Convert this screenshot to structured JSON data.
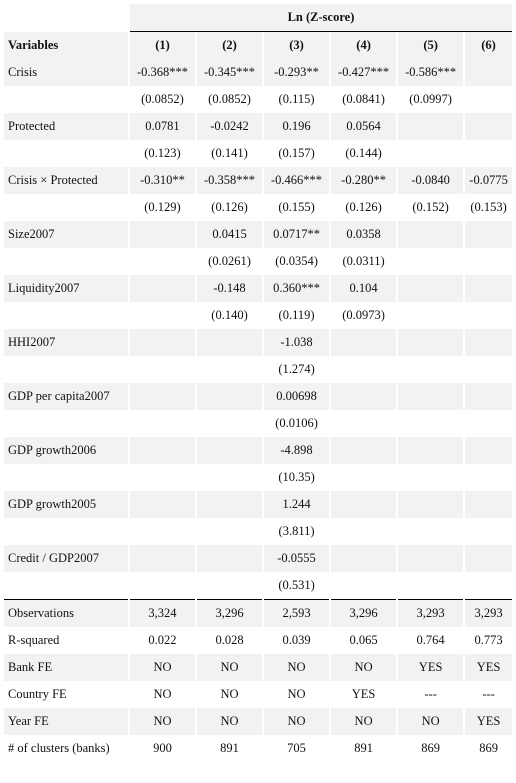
{
  "header": {
    "dep_var": "Ln (Z-score)",
    "variables_label": "Variables",
    "columns": [
      "(1)",
      "(2)",
      "(3)",
      "(4)",
      "(5)",
      "(6)"
    ]
  },
  "rows": [
    {
      "label": "Crisis",
      "shade": true,
      "values": [
        "-0.368***",
        "-0.345***",
        "-0.293**",
        "-0.427***",
        "-0.586***",
        ""
      ]
    },
    {
      "label": "",
      "shade": false,
      "values": [
        "(0.0852)",
        "(0.0852)",
        "(0.115)",
        "(0.0841)",
        "(0.0997)",
        ""
      ]
    },
    {
      "label": "Protected",
      "shade": true,
      "values": [
        "0.0781",
        "-0.0242",
        "0.196",
        "0.0564",
        "",
        ""
      ]
    },
    {
      "label": "",
      "shade": false,
      "values": [
        "(0.123)",
        "(0.141)",
        "(0.157)",
        "(0.144)",
        "",
        ""
      ]
    },
    {
      "label": "Crisis × Protected",
      "shade": true,
      "values": [
        "-0.310**",
        "-0.358***",
        "-0.466***",
        "-0.280**",
        "-0.0840",
        "-0.0775"
      ]
    },
    {
      "label": "",
      "shade": false,
      "values": [
        "(0.129)",
        "(0.126)",
        "(0.155)",
        "(0.126)",
        "(0.152)",
        "(0.153)"
      ]
    },
    {
      "label": "Size2007",
      "shade": true,
      "values": [
        "",
        "0.0415",
        "0.0717**",
        "0.0358",
        "",
        ""
      ]
    },
    {
      "label": "",
      "shade": false,
      "values": [
        "",
        "(0.0261)",
        "(0.0354)",
        "(0.0311)",
        "",
        ""
      ]
    },
    {
      "label": "Liquidity2007",
      "shade": true,
      "values": [
        "",
        "-0.148",
        "0.360***",
        "0.104",
        "",
        ""
      ]
    },
    {
      "label": "",
      "shade": false,
      "values": [
        "",
        "(0.140)",
        "(0.119)",
        "(0.0973)",
        "",
        ""
      ]
    },
    {
      "label": "HHI2007",
      "shade": true,
      "values": [
        "",
        "",
        "-1.038",
        "",
        "",
        ""
      ]
    },
    {
      "label": "",
      "shade": false,
      "values": [
        "",
        "",
        "(1.274)",
        "",
        "",
        ""
      ]
    },
    {
      "label": "GDP per capita2007",
      "shade": true,
      "values": [
        "",
        "",
        "0.00698",
        "",
        "",
        ""
      ]
    },
    {
      "label": "",
      "shade": false,
      "values": [
        "",
        "",
        "(0.0106)",
        "",
        "",
        ""
      ]
    },
    {
      "label": "GDP growth2006",
      "shade": true,
      "values": [
        "",
        "",
        "-4.898",
        "",
        "",
        ""
      ]
    },
    {
      "label": "",
      "shade": false,
      "values": [
        "",
        "",
        "(10.35)",
        "",
        "",
        ""
      ]
    },
    {
      "label": "GDP growth2005",
      "shade": true,
      "values": [
        "",
        "",
        "1.244",
        "",
        "",
        ""
      ]
    },
    {
      "label": "",
      "shade": false,
      "values": [
        "",
        "",
        "(3.811)",
        "",
        "",
        ""
      ]
    },
    {
      "label": "Credit / GDP2007",
      "shade": true,
      "values": [
        "",
        "",
        "-0.0555",
        "",
        "",
        ""
      ]
    },
    {
      "label": "",
      "shade": false,
      "values": [
        "",
        "",
        "(0.531)",
        "",
        "",
        ""
      ]
    }
  ],
  "stats": [
    {
      "label": "Observations",
      "shade": true,
      "values": [
        "3,324",
        "3,296",
        "2,593",
        "3,296",
        "3,293",
        "3,293"
      ]
    },
    {
      "label": "R-squared",
      "shade": false,
      "values": [
        "0.022",
        "0.028",
        "0.039",
        "0.065",
        "0.764",
        "0.773"
      ]
    },
    {
      "label": "Bank FE",
      "shade": true,
      "values": [
        "NO",
        "NO",
        "NO",
        "NO",
        "YES",
        "YES"
      ]
    },
    {
      "label": "Country FE",
      "shade": false,
      "values": [
        "NO",
        "NO",
        "NO",
        "YES",
        "---",
        "---"
      ]
    },
    {
      "label": "Year FE",
      "shade": true,
      "values": [
        "NO",
        "NO",
        "NO",
        "NO",
        "NO",
        "YES"
      ]
    },
    {
      "label": "# of clusters (banks)",
      "shade": false,
      "values": [
        "900",
        "891",
        "705",
        "891",
        "869",
        "869"
      ]
    }
  ]
}
